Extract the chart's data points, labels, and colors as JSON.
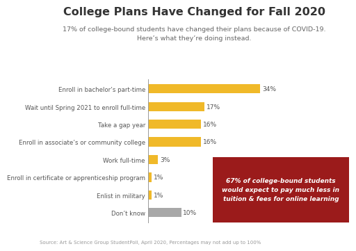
{
  "title": "College Plans Have Changed for Fall 2020",
  "subtitle": "17% of college-bound students have changed their plans because of COVID-19.\nHere’s what they’re doing instead.",
  "source": "Source: Art & Science Group StudentPoll, April 2020, Percentages may not add up to 100%",
  "categories": [
    "Enroll in bachelor’s part-time",
    "Wait until Spring 2021 to enroll full-time",
    "Take a gap year",
    "Enroll in associate’s or community college",
    "Work full-time",
    "Enroll in certificate or apprenticeship program",
    "Enlist in military",
    "Don’t know"
  ],
  "values": [
    34,
    17,
    16,
    16,
    3,
    1,
    1,
    10
  ],
  "bar_colors": [
    "#F0B929",
    "#F0B929",
    "#F0B929",
    "#F0B929",
    "#F0B929",
    "#F0B929",
    "#F0B929",
    "#A8A8A8"
  ],
  "annotation_text": "67% of college-bound students\nwould expect to pay much less in\ntuition & fees for online learning",
  "annotation_bg": "#9B1B1B",
  "annotation_text_color": "#FFFFFF",
  "title_fontsize": 11.5,
  "subtitle_fontsize": 6.8,
  "bar_label_fontsize": 6.5,
  "ylabel_fontsize": 6.2,
  "source_fontsize": 5.0,
  "background_color": "#FFFFFF",
  "bar_text_color": "#555555",
  "title_color": "#333333",
  "subtitle_color": "#666666"
}
